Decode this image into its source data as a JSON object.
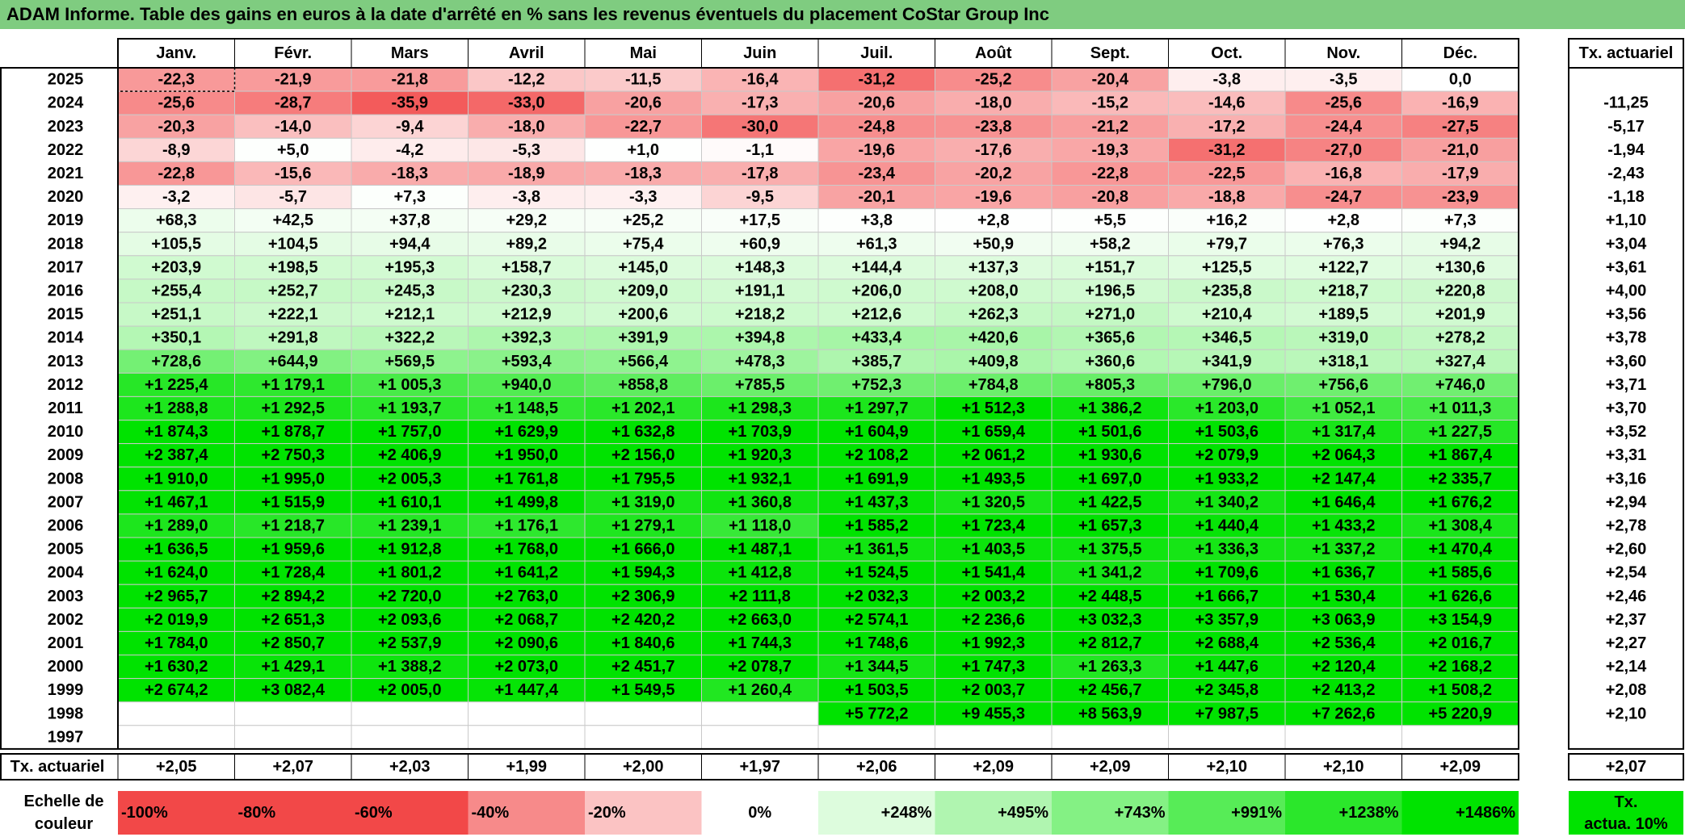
{
  "title": "ADAM Informe. Table des gains en euros à la date d'arrêté en % sans les revenus éventuels du placement CoStar Group Inc",
  "chart_data": {
    "type": "heatmap",
    "columns": [
      "Janv.",
      "Févr.",
      "Mars",
      "Avril",
      "Mai",
      "Juin",
      "Juil.",
      "Août",
      "Sept.",
      "Oct.",
      "Nov.",
      "Déc."
    ],
    "annual_header": "Tx. actuariel",
    "rows": [
      {
        "year": "2025",
        "values": [
          "-22,3",
          "-21,9",
          "-21,8",
          "-12,2",
          "-11,5",
          "-16,4",
          "-31,2",
          "-25,2",
          "-20,4",
          "-3,8",
          "-3,5",
          "0,0"
        ],
        "annual": ""
      },
      {
        "year": "2024",
        "values": [
          "-25,6",
          "-28,7",
          "-35,9",
          "-33,0",
          "-20,6",
          "-17,3",
          "-20,6",
          "-18,0",
          "-15,2",
          "-14,6",
          "-25,6",
          "-16,9"
        ],
        "annual": "-11,25"
      },
      {
        "year": "2023",
        "values": [
          "-20,3",
          "-14,0",
          "-9,4",
          "-18,0",
          "-22,7",
          "-30,0",
          "-24,8",
          "-23,8",
          "-21,2",
          "-17,2",
          "-24,4",
          "-27,5"
        ],
        "annual": "-5,17"
      },
      {
        "year": "2022",
        "values": [
          "-8,9",
          "+5,0",
          "-4,2",
          "-5,3",
          "+1,0",
          "-1,1",
          "-19,6",
          "-17,6",
          "-19,3",
          "-31,2",
          "-27,0",
          "-21,0"
        ],
        "annual": "-1,94"
      },
      {
        "year": "2021",
        "values": [
          "-22,8",
          "-15,6",
          "-18,3",
          "-18,9",
          "-18,3",
          "-17,8",
          "-23,4",
          "-20,2",
          "-22,8",
          "-22,5",
          "-16,8",
          "-17,9"
        ],
        "annual": "-2,43"
      },
      {
        "year": "2020",
        "values": [
          "-3,2",
          "-5,7",
          "+7,3",
          "-3,8",
          "-3,3",
          "-9,5",
          "-20,1",
          "-19,6",
          "-20,8",
          "-18,8",
          "-24,7",
          "-23,9"
        ],
        "annual": "-1,18"
      },
      {
        "year": "2019",
        "values": [
          "+68,3",
          "+42,5",
          "+37,8",
          "+29,2",
          "+25,2",
          "+17,5",
          "+3,8",
          "+2,8",
          "+5,5",
          "+16,2",
          "+2,8",
          "+7,3"
        ],
        "annual": "+1,10"
      },
      {
        "year": "2018",
        "values": [
          "+105,5",
          "+104,5",
          "+94,4",
          "+89,2",
          "+75,4",
          "+60,9",
          "+61,3",
          "+50,9",
          "+58,2",
          "+79,7",
          "+76,3",
          "+94,2"
        ],
        "annual": "+3,04"
      },
      {
        "year": "2017",
        "values": [
          "+203,9",
          "+198,5",
          "+195,3",
          "+158,7",
          "+145,0",
          "+148,3",
          "+144,4",
          "+137,3",
          "+151,7",
          "+125,5",
          "+122,7",
          "+130,6"
        ],
        "annual": "+3,61"
      },
      {
        "year": "2016",
        "values": [
          "+255,4",
          "+252,7",
          "+245,3",
          "+230,3",
          "+209,0",
          "+191,1",
          "+206,0",
          "+208,0",
          "+196,5",
          "+235,8",
          "+218,7",
          "+220,8"
        ],
        "annual": "+4,00"
      },
      {
        "year": "2015",
        "values": [
          "+251,1",
          "+222,1",
          "+212,1",
          "+212,9",
          "+200,6",
          "+218,2",
          "+212,6",
          "+262,3",
          "+271,0",
          "+210,4",
          "+189,5",
          "+201,9"
        ],
        "annual": "+3,56"
      },
      {
        "year": "2014",
        "values": [
          "+350,1",
          "+291,8",
          "+322,2",
          "+392,3",
          "+391,9",
          "+394,8",
          "+433,4",
          "+420,6",
          "+365,6",
          "+346,5",
          "+319,0",
          "+278,2"
        ],
        "annual": "+3,78"
      },
      {
        "year": "2013",
        "values": [
          "+728,6",
          "+644,9",
          "+569,5",
          "+593,4",
          "+566,4",
          "+478,3",
          "+385,7",
          "+409,8",
          "+360,6",
          "+341,9",
          "+318,1",
          "+327,4"
        ],
        "annual": "+3,60"
      },
      {
        "year": "2012",
        "values": [
          "+1 225,4",
          "+1 179,1",
          "+1 005,3",
          "+940,0",
          "+858,8",
          "+785,5",
          "+752,3",
          "+784,8",
          "+805,3",
          "+796,0",
          "+756,6",
          "+746,0"
        ],
        "annual": "+3,71"
      },
      {
        "year": "2011",
        "values": [
          "+1 288,8",
          "+1 292,5",
          "+1 193,7",
          "+1 148,5",
          "+1 202,1",
          "+1 298,3",
          "+1 297,7",
          "+1 512,3",
          "+1 386,2",
          "+1 203,0",
          "+1 052,1",
          "+1 011,3"
        ],
        "annual": "+3,70"
      },
      {
        "year": "2010",
        "values": [
          "+1 874,3",
          "+1 878,7",
          "+1 757,0",
          "+1 629,9",
          "+1 632,8",
          "+1 703,9",
          "+1 604,9",
          "+1 659,4",
          "+1 501,6",
          "+1 503,6",
          "+1 317,4",
          "+1 227,5"
        ],
        "annual": "+3,52"
      },
      {
        "year": "2009",
        "values": [
          "+2 387,4",
          "+2 750,3",
          "+2 406,9",
          "+1 950,0",
          "+2 156,0",
          "+1 920,3",
          "+2 108,2",
          "+2 061,2",
          "+1 930,6",
          "+2 079,9",
          "+2 064,3",
          "+1 867,4"
        ],
        "annual": "+3,31"
      },
      {
        "year": "2008",
        "values": [
          "+1 910,0",
          "+1 995,0",
          "+2 005,3",
          "+1 761,8",
          "+1 795,5",
          "+1 932,1",
          "+1 691,9",
          "+1 493,5",
          "+1 697,0",
          "+1 933,2",
          "+2 147,4",
          "+2 335,7"
        ],
        "annual": "+3,16"
      },
      {
        "year": "2007",
        "values": [
          "+1 467,1",
          "+1 515,9",
          "+1 610,1",
          "+1 499,8",
          "+1 319,0",
          "+1 360,8",
          "+1 437,3",
          "+1 320,5",
          "+1 422,5",
          "+1 340,2",
          "+1 646,4",
          "+1 676,2"
        ],
        "annual": "+2,94"
      },
      {
        "year": "2006",
        "values": [
          "+1 289,0",
          "+1 218,7",
          "+1 239,1",
          "+1 176,1",
          "+1 279,1",
          "+1 118,0",
          "+1 585,2",
          "+1 723,4",
          "+1 657,3",
          "+1 440,4",
          "+1 433,2",
          "+1 308,4"
        ],
        "annual": "+2,78"
      },
      {
        "year": "2005",
        "values": [
          "+1 636,5",
          "+1 959,6",
          "+1 912,8",
          "+1 768,0",
          "+1 666,0",
          "+1 487,1",
          "+1 361,5",
          "+1 403,5",
          "+1 375,5",
          "+1 336,3",
          "+1 337,2",
          "+1 470,4"
        ],
        "annual": "+2,60"
      },
      {
        "year": "2004",
        "values": [
          "+1 624,0",
          "+1 728,4",
          "+1 801,2",
          "+1 641,2",
          "+1 594,3",
          "+1 412,8",
          "+1 524,5",
          "+1 541,4",
          "+1 341,2",
          "+1 709,6",
          "+1 636,7",
          "+1 585,6"
        ],
        "annual": "+2,54"
      },
      {
        "year": "2003",
        "values": [
          "+2 965,7",
          "+2 894,2",
          "+2 720,0",
          "+2 763,0",
          "+2 306,9",
          "+2 111,8",
          "+2 032,3",
          "+2 003,2",
          "+2 448,5",
          "+1 666,7",
          "+1 530,4",
          "+1 626,6"
        ],
        "annual": "+2,46"
      },
      {
        "year": "2002",
        "values": [
          "+2 019,9",
          "+2 651,3",
          "+2 093,6",
          "+2 068,7",
          "+2 420,2",
          "+2 663,0",
          "+2 574,1",
          "+2 236,6",
          "+3 032,3",
          "+3 357,9",
          "+3 063,9",
          "+3 154,9"
        ],
        "annual": "+2,37"
      },
      {
        "year": "2001",
        "values": [
          "+1 784,0",
          "+2 850,7",
          "+2 537,9",
          "+2 090,6",
          "+1 840,6",
          "+1 744,3",
          "+1 748,6",
          "+1 992,3",
          "+2 812,7",
          "+2 688,4",
          "+2 536,4",
          "+2 016,7"
        ],
        "annual": "+2,27"
      },
      {
        "year": "2000",
        "values": [
          "+1 630,2",
          "+1 429,1",
          "+1 388,2",
          "+2 073,0",
          "+2 451,7",
          "+2 078,7",
          "+1 344,5",
          "+1 747,3",
          "+1 263,3",
          "+1 447,6",
          "+2 120,4",
          "+2 168,2"
        ],
        "annual": "+2,14"
      },
      {
        "year": "1999",
        "values": [
          "+2 674,2",
          "+3 082,4",
          "+2 005,0",
          "+1 447,4",
          "+1 549,5",
          "+1 260,4",
          "+1 503,5",
          "+2 003,7",
          "+2 456,7",
          "+2 345,8",
          "+2 413,2",
          "+1 508,2"
        ],
        "annual": "+2,08"
      },
      {
        "year": "1998",
        "values": [
          "",
          "",
          "",
          "",
          "",
          "",
          "+5 772,2",
          "+9 455,3",
          "+8 563,9",
          "+7 987,5",
          "+7 262,6",
          "+5 220,9"
        ],
        "annual": "+2,10"
      },
      {
        "year": "1997",
        "values": [
          "",
          "",
          "",
          "",
          "",
          "",
          "",
          "",
          "",
          "",
          "",
          ""
        ],
        "annual": ""
      }
    ],
    "footer": {
      "label": "Tx. actuariel",
      "values": [
        "+2,05",
        "+2,07",
        "+2,03",
        "+1,99",
        "+2,00",
        "+1,97",
        "+2,06",
        "+2,09",
        "+2,09",
        "+2,10",
        "+2,10",
        "+2,09"
      ],
      "annual": "+2,07"
    },
    "scale": {
      "label_line1": "Echelle de",
      "label_line2": "couleur",
      "steps": [
        {
          "label": "-100%",
          "color": "#f24848"
        },
        {
          "label": "-80%",
          "color": "#f24848"
        },
        {
          "label": "-60%",
          "color": "#f24848"
        },
        {
          "label": "-40%",
          "color": "#f78a8a"
        },
        {
          "label": "-20%",
          "color": "#fbc3c3"
        },
        {
          "label": "0%",
          "color": "#ffffff"
        },
        {
          "label": "+248%",
          "color": "#ddfcdd"
        },
        {
          "label": "+495%",
          "color": "#b0f5b0"
        },
        {
          "label": "+743%",
          "color": "#84f184"
        },
        {
          "label": "+991%",
          "color": "#57ec57"
        },
        {
          "label": "+1238%",
          "color": "#2be72b"
        },
        {
          "label": "+1486%",
          "color": "#00e300"
        }
      ],
      "side_line1": "Tx.",
      "side_line2": "actua. 10%",
      "side_color": "#00e300"
    },
    "colors": {
      "title_bg": "#7fcc80",
      "pos_max": "#00e300",
      "neg_max": "#f24848",
      "grid": "#c9c9c9"
    }
  }
}
